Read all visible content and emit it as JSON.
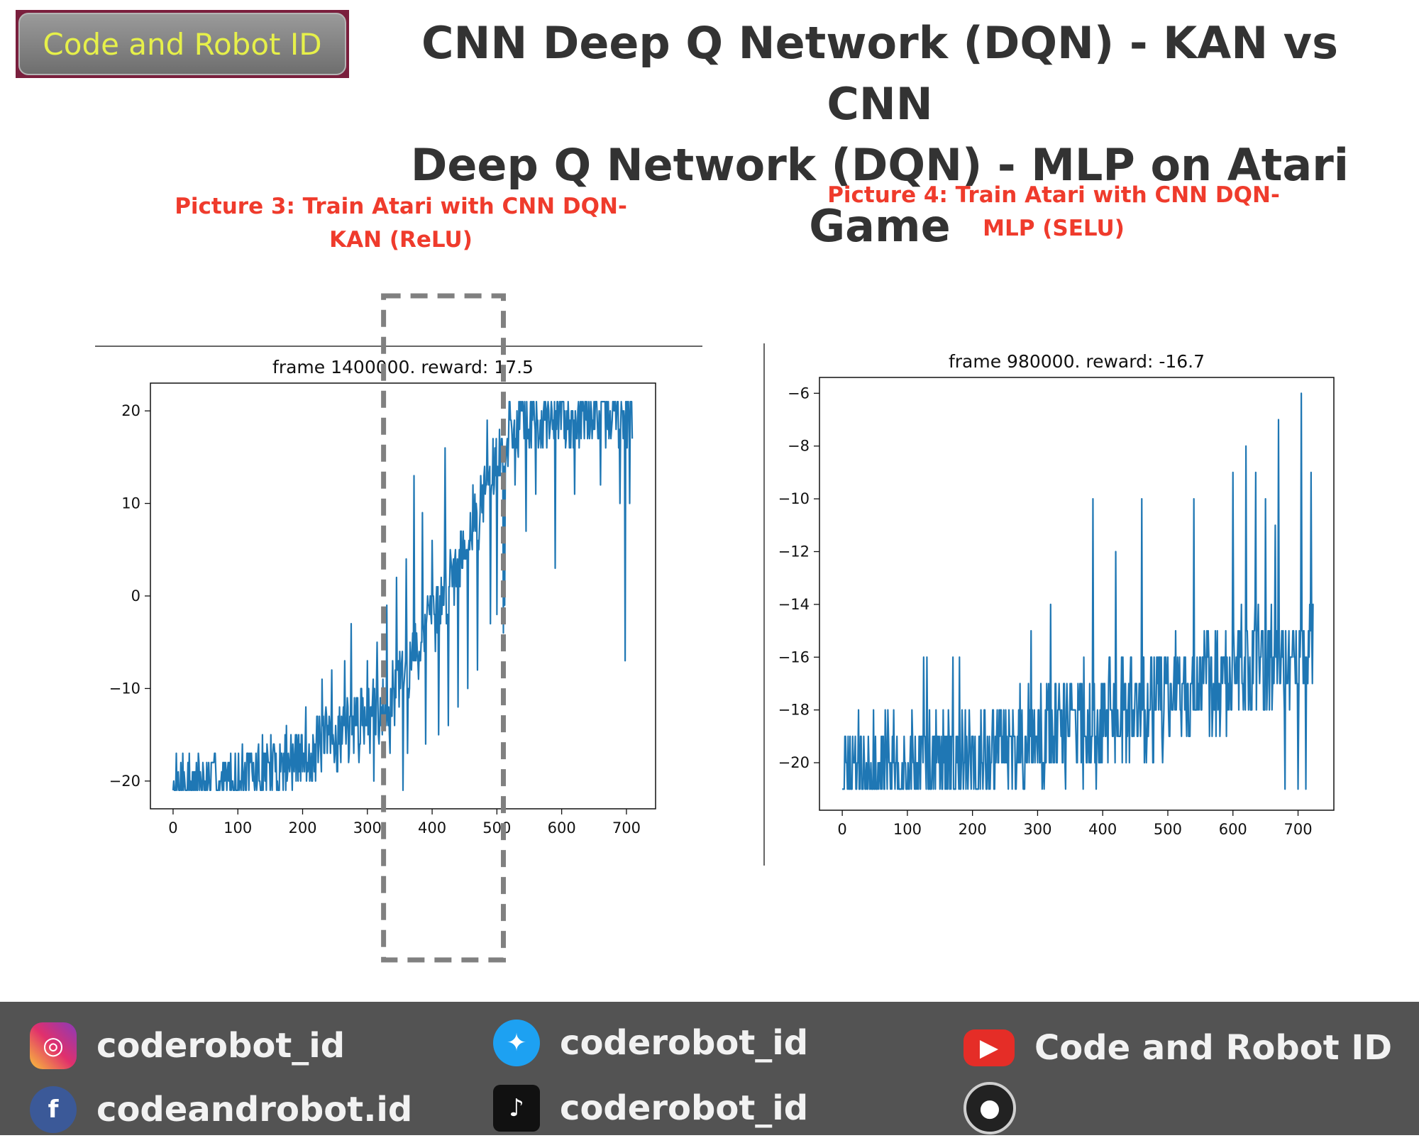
{
  "header": {
    "logo_text": "Code and Robot ID",
    "title_line1": "CNN Deep Q Network (DQN) - KAN vs CNN",
    "title_line2": "Deep Q Network (DQN) - MLP on Atari Game"
  },
  "captions": {
    "left_line1": "Picture 3: Train Atari with CNN DQN-",
    "left_line2": "KAN (ReLU)",
    "right_line1": "Picture 4: Train Atari with CNN DQN-",
    "right_line2": "MLP (SELU)"
  },
  "chart_data": [
    {
      "type": "line",
      "title": "frame 1400000. reward: 17.5",
      "xlabel": "",
      "ylabel": "",
      "xlim": [
        -35,
        745
      ],
      "ylim": [
        -23,
        23
      ],
      "xticks": [
        0,
        100,
        200,
        300,
        400,
        500,
        600,
        700
      ],
      "yticks": [
        -20,
        -10,
        0,
        10,
        20
      ],
      "grid": false,
      "color": "#1f77b4",
      "n_points": 710,
      "trend": [
        [
          0,
          -20.8
        ],
        [
          100,
          -20.2
        ],
        [
          200,
          -17.5
        ],
        [
          280,
          -14
        ],
        [
          320,
          -12
        ],
        [
          360,
          -8
        ],
        [
          400,
          -3
        ],
        [
          440,
          4
        ],
        [
          480,
          11
        ],
        [
          510,
          16
        ],
        [
          530,
          19
        ],
        [
          600,
          19.5
        ],
        [
          710,
          19.8
        ]
      ],
      "spikes": [
        [
          15,
          -17
        ],
        [
          25,
          -17
        ],
        [
          40,
          -18
        ],
        [
          60,
          -18
        ],
        [
          85,
          -18
        ],
        [
          115,
          -17
        ],
        [
          145,
          -16
        ],
        [
          175,
          -14
        ],
        [
          205,
          -12
        ],
        [
          230,
          -9
        ],
        [
          245,
          -8
        ],
        [
          265,
          -7
        ],
        [
          275,
          -3
        ],
        [
          300,
          -7
        ],
        [
          315,
          -5
        ],
        [
          330,
          -1
        ],
        [
          345,
          2
        ],
        [
          360,
          4
        ],
        [
          372,
          13
        ],
        [
          385,
          9
        ],
        [
          400,
          6
        ],
        [
          420,
          16
        ],
        [
          440,
          20
        ],
        [
          455,
          21
        ],
        [
          470,
          20
        ],
        [
          485,
          19
        ],
        [
          500,
          21
        ],
        [
          520,
          21
        ],
        [
          540,
          21
        ],
        [
          560,
          21
        ],
        [
          600,
          21
        ],
        [
          650,
          21
        ],
        [
          700,
          21
        ]
      ],
      "dips": [
        [
          310,
          -20
        ],
        [
          335,
          -17
        ],
        [
          355,
          -21
        ],
        [
          362,
          -17
        ],
        [
          390,
          -16
        ],
        [
          410,
          -15
        ],
        [
          425,
          -14
        ],
        [
          440,
          -12
        ],
        [
          455,
          -10
        ],
        [
          470,
          -8
        ],
        [
          490,
          -3
        ],
        [
          500,
          -2
        ],
        [
          510,
          -4
        ],
        [
          512,
          -1
        ],
        [
          528,
          12
        ],
        [
          545,
          7
        ],
        [
          560,
          11
        ],
        [
          590,
          3
        ],
        [
          620,
          11
        ],
        [
          660,
          12
        ],
        [
          690,
          10
        ],
        [
          698,
          -7
        ],
        [
          705,
          10
        ]
      ],
      "annotation": {
        "type": "dashed-rect",
        "x_range": [
          325,
          510
        ],
        "color": "#808080"
      }
    },
    {
      "type": "line",
      "title": "frame 980000. reward: -16.7",
      "xlabel": "",
      "ylabel": "",
      "xlim": [
        -35,
        755
      ],
      "ylim": [
        -21.8,
        -5.4
      ],
      "xticks": [
        0,
        100,
        200,
        300,
        400,
        500,
        600,
        700
      ],
      "yticks": [
        -6,
        -8,
        -10,
        -12,
        -14,
        -16,
        -18,
        -20
      ],
      "grid": false,
      "color": "#1f77b4",
      "n_points": 725,
      "trend": [
        [
          0,
          -20.8
        ],
        [
          100,
          -20.5
        ],
        [
          200,
          -20
        ],
        [
          300,
          -19.3
        ],
        [
          400,
          -18
        ],
        [
          500,
          -17.6
        ],
        [
          600,
          -16.5
        ],
        [
          720,
          -16
        ]
      ],
      "spikes": [
        [
          25,
          -18
        ],
        [
          60,
          -19
        ],
        [
          70,
          -18
        ],
        [
          125,
          -16
        ],
        [
          130,
          -16
        ],
        [
          170,
          -16
        ],
        [
          180,
          -16
        ],
        [
          290,
          -15
        ],
        [
          320,
          -14
        ],
        [
          385,
          -10
        ],
        [
          420,
          -12
        ],
        [
          460,
          -10
        ],
        [
          540,
          -10
        ],
        [
          600,
          -9
        ],
        [
          620,
          -8
        ],
        [
          635,
          -9
        ],
        [
          650,
          -10
        ],
        [
          665,
          -11
        ],
        [
          670,
          -7
        ],
        [
          705,
          -6
        ],
        [
          720,
          -9
        ]
      ],
      "dips": [
        [
          680,
          -21
        ],
        [
          700,
          -21
        ],
        [
          712,
          -21
        ]
      ],
      "annotation": null
    }
  ],
  "footer": {
    "instagram": "coderobot_id",
    "twitter": "coderobot_id",
    "youtube": "Code and Robot ID",
    "facebook": "codeandrobot.id",
    "tiktok": "coderobot_id",
    "icons": [
      "instagram-icon",
      "twitter-icon",
      "youtube-icon",
      "facebook-icon",
      "tiktok-icon",
      "github-icon"
    ]
  }
}
